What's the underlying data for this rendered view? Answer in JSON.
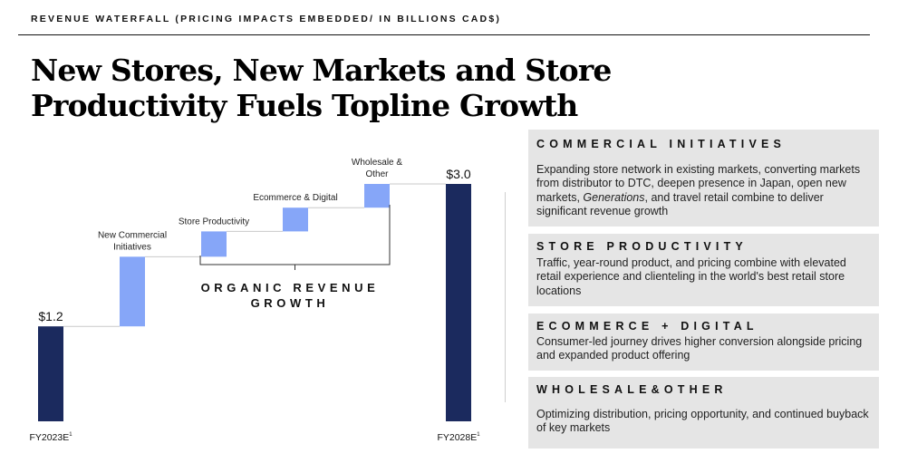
{
  "header": {
    "eyebrow": "REVENUE WATERFALL (PRICING IMPACTS EMBEDDED/ IN BILLIONS CAD$)",
    "title": "New Stores, New Markets and Store Productivity Fuels Topline Growth"
  },
  "chart_data": {
    "type": "bar",
    "subtype": "waterfall",
    "title": "",
    "xlabel": "",
    "ylabel": "",
    "ylim": [
      0,
      3.2
    ],
    "grid": false,
    "categories": [
      "FY2023E",
      "New Commercial Initiatives",
      "Store Productivity",
      "Ecommerce & Digital",
      "Wholesale & Other",
      "FY2028E"
    ],
    "category_labels": [
      "FY2023E",
      "New Commercial\nInitiatives",
      "Store Productivity",
      "Ecommerce & Digital",
      "Wholesale &\nOther",
      "FY2028E"
    ],
    "footnote_marker": "1",
    "bars": [
      {
        "kind": "total",
        "value": 1.2,
        "label": "$1.2"
      },
      {
        "kind": "increment",
        "start": 1.2,
        "end": 2.08
      },
      {
        "kind": "increment",
        "start": 2.08,
        "end": 2.4
      },
      {
        "kind": "increment",
        "start": 2.4,
        "end": 2.7
      },
      {
        "kind": "increment",
        "start": 2.7,
        "end": 3.0
      },
      {
        "kind": "total",
        "value": 3.0,
        "label": "$3.0"
      }
    ],
    "bracket_label": "ORGANIC REVENUE\nGROWTH",
    "colors": {
      "total": "#1b2a5e",
      "increment": "#86a6f8",
      "connector": "#c9c9c9"
    }
  },
  "panels": [
    {
      "title": "COMMERCIAL INITIATIVES",
      "body": [
        {
          "text": "Expanding store network in existing markets, converting markets from distributor to DTC, deepen presence in Japan, open new markets, ",
          "italic": false
        },
        {
          "text": "Generations",
          "italic": true
        },
        {
          "text": ", and travel retail combine to deliver significant revenue growth",
          "italic": false
        }
      ]
    },
    {
      "title": "STORE PRODUCTIVITY",
      "body": [
        {
          "text": "Traffic, year-round product, and pricing combine with elevated retail experience and clienteling in the world's best retail store locations",
          "italic": false
        }
      ]
    },
    {
      "title": "ECOMMERCE + DIGITAL",
      "body": [
        {
          "text": "Consumer-led journey drives higher conversion alongside pricing and expanded product offering",
          "italic": false
        }
      ]
    },
    {
      "title": "WHOLESALE&OTHER",
      "body": [
        {
          "text": "Optimizing distribution, pricing opportunity, and continued buyback of key markets",
          "italic": false
        }
      ]
    }
  ]
}
